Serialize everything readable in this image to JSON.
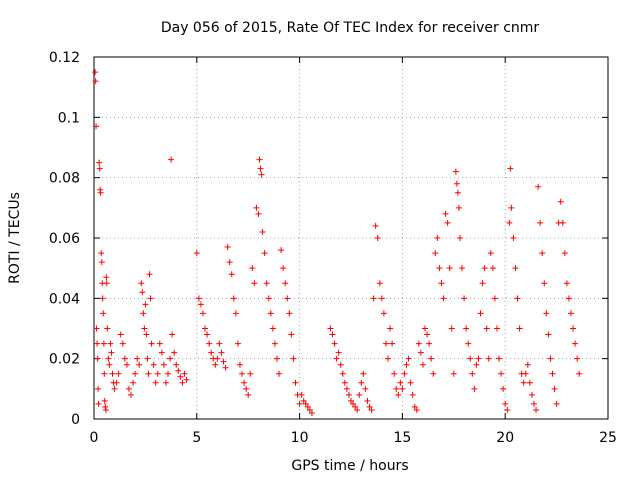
{
  "chart_data": {
    "type": "scatter",
    "title": "Day 056 of 2015, Rate Of TEC Index for receiver cnmr",
    "xlabel": "GPS time / hours",
    "ylabel": "ROTI / TECUs",
    "xlim": [
      0,
      25
    ],
    "ylim": [
      0,
      0.12
    ],
    "x_ticks": [
      0,
      5,
      10,
      15,
      20,
      25
    ],
    "x_tick_labels": [
      "0",
      "5",
      "10",
      "15",
      "20",
      "25"
    ],
    "y_ticks": [
      0,
      0.02,
      0.04,
      0.06,
      0.08,
      0.1,
      0.12
    ],
    "y_tick_labels": [
      "0",
      "0.02",
      "0.04",
      "0.06",
      "0.08",
      "0.1",
      "0.12"
    ],
    "grid": true,
    "marker": "+",
    "color": "#ff0000",
    "series": [
      {
        "name": "ROTI",
        "points": [
          [
            0.05,
            0.115
          ],
          [
            0.08,
            0.112
          ],
          [
            0.1,
            0.097
          ],
          [
            0.12,
            0.03
          ],
          [
            0.15,
            0.025
          ],
          [
            0.18,
            0.02
          ],
          [
            0.2,
            0.01
          ],
          [
            0.22,
            0.005
          ],
          [
            0.25,
            0.085
          ],
          [
            0.28,
            0.083
          ],
          [
            0.3,
            0.076
          ],
          [
            0.32,
            0.075
          ],
          [
            0.35,
            0.055
          ],
          [
            0.38,
            0.052
          ],
          [
            0.4,
            0.045
          ],
          [
            0.42,
            0.04
          ],
          [
            0.45,
            0.035
          ],
          [
            0.48,
            0.025
          ],
          [
            0.5,
            0.015
          ],
          [
            0.52,
            0.006
          ],
          [
            0.55,
            0.004
          ],
          [
            0.58,
            0.003
          ],
          [
            0.6,
            0.047
          ],
          [
            0.62,
            0.045
          ],
          [
            0.65,
            0.03
          ],
          [
            0.7,
            0.02
          ],
          [
            0.75,
            0.018
          ],
          [
            0.8,
            0.025
          ],
          [
            0.85,
            0.022
          ],
          [
            0.9,
            0.015
          ],
          [
            0.95,
            0.012
          ],
          [
            1.0,
            0.01
          ],
          [
            1.1,
            0.012
          ],
          [
            1.2,
            0.015
          ],
          [
            1.3,
            0.028
          ],
          [
            1.4,
            0.025
          ],
          [
            1.5,
            0.02
          ],
          [
            1.6,
            0.018
          ],
          [
            1.7,
            0.01
          ],
          [
            1.8,
            0.008
          ],
          [
            1.9,
            0.012
          ],
          [
            2.0,
            0.015
          ],
          [
            2.1,
            0.02
          ],
          [
            2.2,
            0.018
          ],
          [
            2.3,
            0.045
          ],
          [
            2.35,
            0.042
          ],
          [
            2.4,
            0.035
          ],
          [
            2.45,
            0.03
          ],
          [
            2.5,
            0.038
          ],
          [
            2.55,
            0.028
          ],
          [
            2.6,
            0.02
          ],
          [
            2.65,
            0.015
          ],
          [
            2.7,
            0.048
          ],
          [
            2.75,
            0.04
          ],
          [
            2.8,
            0.025
          ],
          [
            2.9,
            0.018
          ],
          [
            3.0,
            0.012
          ],
          [
            3.1,
            0.015
          ],
          [
            3.2,
            0.025
          ],
          [
            3.3,
            0.022
          ],
          [
            3.4,
            0.018
          ],
          [
            3.5,
            0.012
          ],
          [
            3.6,
            0.015
          ],
          [
            3.7,
            0.02
          ],
          [
            3.75,
            0.086
          ],
          [
            3.8,
            0.028
          ],
          [
            3.9,
            0.022
          ],
          [
            4.0,
            0.018
          ],
          [
            4.1,
            0.016
          ],
          [
            4.2,
            0.014
          ],
          [
            4.3,
            0.012
          ],
          [
            4.4,
            0.015
          ],
          [
            4.5,
            0.013
          ],
          [
            5.0,
            0.055
          ],
          [
            5.1,
            0.04
          ],
          [
            5.2,
            0.038
          ],
          [
            5.3,
            0.035
          ],
          [
            5.4,
            0.03
          ],
          [
            5.5,
            0.028
          ],
          [
            5.6,
            0.025
          ],
          [
            5.7,
            0.022
          ],
          [
            5.8,
            0.02
          ],
          [
            5.9,
            0.018
          ],
          [
            6.0,
            0.02
          ],
          [
            6.1,
            0.025
          ],
          [
            6.2,
            0.022
          ],
          [
            6.3,
            0.019
          ],
          [
            6.4,
            0.017
          ],
          [
            6.5,
            0.057
          ],
          [
            6.6,
            0.052
          ],
          [
            6.7,
            0.048
          ],
          [
            6.8,
            0.04
          ],
          [
            6.9,
            0.035
          ],
          [
            7.0,
            0.025
          ],
          [
            7.1,
            0.018
          ],
          [
            7.2,
            0.015
          ],
          [
            7.3,
            0.012
          ],
          [
            7.4,
            0.01
          ],
          [
            7.5,
            0.008
          ],
          [
            7.6,
            0.015
          ],
          [
            7.7,
            0.05
          ],
          [
            7.8,
            0.045
          ],
          [
            7.9,
            0.07
          ],
          [
            8.0,
            0.068
          ],
          [
            8.05,
            0.086
          ],
          [
            8.1,
            0.083
          ],
          [
            8.15,
            0.081
          ],
          [
            8.2,
            0.062
          ],
          [
            8.3,
            0.055
          ],
          [
            8.4,
            0.045
          ],
          [
            8.5,
            0.04
          ],
          [
            8.6,
            0.035
          ],
          [
            8.7,
            0.03
          ],
          [
            8.8,
            0.025
          ],
          [
            8.9,
            0.02
          ],
          [
            9.0,
            0.015
          ],
          [
            9.1,
            0.056
          ],
          [
            9.2,
            0.05
          ],
          [
            9.3,
            0.045
          ],
          [
            9.4,
            0.04
          ],
          [
            9.5,
            0.035
          ],
          [
            9.6,
            0.028
          ],
          [
            9.7,
            0.02
          ],
          [
            9.8,
            0.012
          ],
          [
            9.9,
            0.008
          ],
          [
            10.0,
            0.005
          ],
          [
            10.1,
            0.008
          ],
          [
            10.2,
            0.006
          ],
          [
            10.3,
            0.005
          ],
          [
            10.4,
            0.004
          ],
          [
            10.5,
            0.003
          ],
          [
            10.6,
            0.002
          ],
          [
            11.5,
            0.03
          ],
          [
            11.6,
            0.028
          ],
          [
            11.7,
            0.025
          ],
          [
            11.8,
            0.02
          ],
          [
            11.9,
            0.022
          ],
          [
            12.0,
            0.018
          ],
          [
            12.1,
            0.015
          ],
          [
            12.2,
            0.012
          ],
          [
            12.3,
            0.01
          ],
          [
            12.4,
            0.008
          ],
          [
            12.5,
            0.006
          ],
          [
            12.6,
            0.005
          ],
          [
            12.7,
            0.004
          ],
          [
            12.8,
            0.003
          ],
          [
            12.9,
            0.008
          ],
          [
            13.0,
            0.012
          ],
          [
            13.1,
            0.015
          ],
          [
            13.2,
            0.01
          ],
          [
            13.3,
            0.006
          ],
          [
            13.4,
            0.004
          ],
          [
            13.5,
            0.003
          ],
          [
            13.6,
            0.04
          ],
          [
            13.7,
            0.064
          ],
          [
            13.8,
            0.06
          ],
          [
            13.9,
            0.045
          ],
          [
            14.0,
            0.04
          ],
          [
            14.1,
            0.035
          ],
          [
            14.2,
            0.025
          ],
          [
            14.3,
            0.02
          ],
          [
            14.4,
            0.03
          ],
          [
            14.5,
            0.025
          ],
          [
            14.6,
            0.015
          ],
          [
            14.7,
            0.01
          ],
          [
            14.8,
            0.008
          ],
          [
            14.9,
            0.012
          ],
          [
            15.0,
            0.01
          ],
          [
            15.1,
            0.015
          ],
          [
            15.2,
            0.018
          ],
          [
            15.3,
            0.02
          ],
          [
            15.4,
            0.012
          ],
          [
            15.5,
            0.008
          ],
          [
            15.6,
            0.004
          ],
          [
            15.7,
            0.003
          ],
          [
            15.8,
            0.025
          ],
          [
            15.9,
            0.022
          ],
          [
            16.0,
            0.018
          ],
          [
            16.1,
            0.03
          ],
          [
            16.2,
            0.028
          ],
          [
            16.3,
            0.025
          ],
          [
            16.4,
            0.02
          ],
          [
            16.5,
            0.015
          ],
          [
            16.6,
            0.055
          ],
          [
            16.7,
            0.06
          ],
          [
            16.8,
            0.05
          ],
          [
            16.9,
            0.045
          ],
          [
            17.0,
            0.04
          ],
          [
            17.1,
            0.068
          ],
          [
            17.2,
            0.065
          ],
          [
            17.3,
            0.05
          ],
          [
            17.4,
            0.03
          ],
          [
            17.5,
            0.015
          ],
          [
            17.6,
            0.082
          ],
          [
            17.65,
            0.078
          ],
          [
            17.7,
            0.075
          ],
          [
            17.75,
            0.07
          ],
          [
            17.8,
            0.06
          ],
          [
            17.9,
            0.05
          ],
          [
            18.0,
            0.04
          ],
          [
            18.1,
            0.03
          ],
          [
            18.2,
            0.025
          ],
          [
            18.3,
            0.02
          ],
          [
            18.4,
            0.015
          ],
          [
            18.5,
            0.01
          ],
          [
            18.6,
            0.018
          ],
          [
            18.7,
            0.02
          ],
          [
            18.8,
            0.035
          ],
          [
            18.9,
            0.045
          ],
          [
            19.0,
            0.05
          ],
          [
            19.1,
            0.03
          ],
          [
            19.2,
            0.02
          ],
          [
            19.3,
            0.055
          ],
          [
            19.4,
            0.05
          ],
          [
            19.5,
            0.04
          ],
          [
            19.6,
            0.03
          ],
          [
            19.7,
            0.02
          ],
          [
            19.8,
            0.015
          ],
          [
            19.9,
            0.01
          ],
          [
            20.0,
            0.005
          ],
          [
            20.1,
            0.003
          ],
          [
            20.2,
            0.065
          ],
          [
            20.25,
            0.083
          ],
          [
            20.3,
            0.07
          ],
          [
            20.4,
            0.06
          ],
          [
            20.5,
            0.05
          ],
          [
            20.6,
            0.04
          ],
          [
            20.7,
            0.03
          ],
          [
            20.8,
            0.015
          ],
          [
            20.9,
            0.012
          ],
          [
            21.0,
            0.015
          ],
          [
            21.1,
            0.018
          ],
          [
            21.2,
            0.012
          ],
          [
            21.3,
            0.008
          ],
          [
            21.4,
            0.005
          ],
          [
            21.5,
            0.003
          ],
          [
            21.6,
            0.077
          ],
          [
            21.7,
            0.065
          ],
          [
            21.8,
            0.055
          ],
          [
            21.9,
            0.045
          ],
          [
            22.0,
            0.035
          ],
          [
            22.1,
            0.028
          ],
          [
            22.2,
            0.02
          ],
          [
            22.3,
            0.015
          ],
          [
            22.4,
            0.01
          ],
          [
            22.5,
            0.005
          ],
          [
            22.6,
            0.065
          ],
          [
            22.7,
            0.072
          ],
          [
            22.8,
            0.065
          ],
          [
            22.9,
            0.055
          ],
          [
            23.0,
            0.045
          ],
          [
            23.1,
            0.04
          ],
          [
            23.2,
            0.035
          ],
          [
            23.3,
            0.03
          ],
          [
            23.4,
            0.025
          ],
          [
            23.5,
            0.02
          ],
          [
            23.6,
            0.015
          ]
        ]
      }
    ]
  }
}
